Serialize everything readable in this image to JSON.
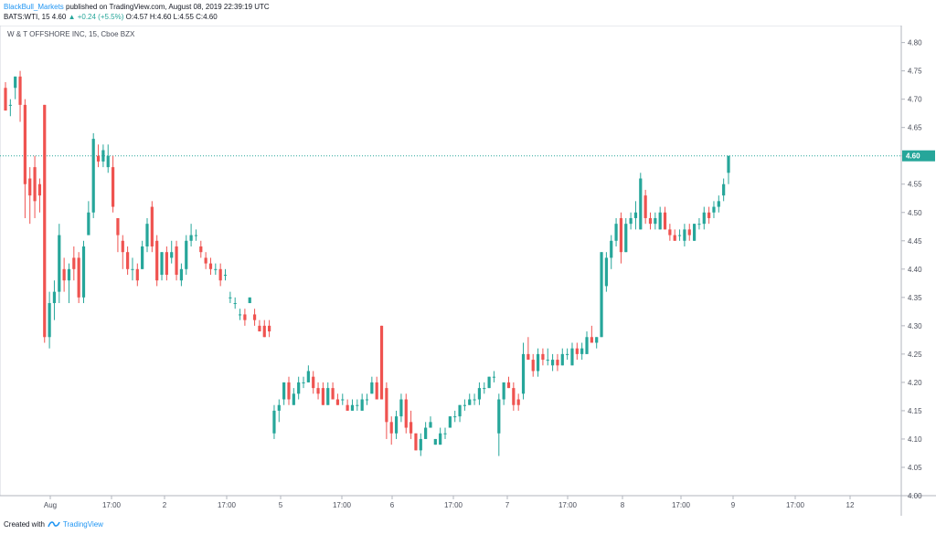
{
  "header": {
    "author": "BlackBull_Markets",
    "published_text": " published on TradingView.com, August 08, 2019 22:39:19 UTC",
    "symbol_line": "BATS:WTI, 15  4.60",
    "change": "▲ +0.24 (+5.5%)",
    "ohlc": "O:4.57  H:4.60  L:4.55  C:4.60"
  },
  "chart_data": {
    "type": "candlestick",
    "title": "W & T OFFSHORE INC, 15, Cboe BZX",
    "ylim": [
      4.0,
      4.83
    ],
    "y_ticks": [
      "4.80",
      "4.75",
      "4.70",
      "4.65",
      "4.60",
      "4.55",
      "4.50",
      "4.45",
      "4.40",
      "4.35",
      "4.30",
      "4.25",
      "4.20",
      "4.15",
      "4.10",
      "4.05",
      "4.00"
    ],
    "x_ticks": [
      "Aug",
      "17:00",
      "2",
      "17:00",
      "5",
      "17:00",
      "6",
      "17:00",
      "7",
      "17:00",
      "8",
      "17:00",
      "9",
      "17:00",
      "12"
    ],
    "last_price": "4.60",
    "colors": {
      "up": "#26a69a",
      "down": "#ef5350",
      "last_line": "#26a69a"
    },
    "candles": [
      [
        4.72,
        4.73,
        4.68,
        4.68
      ],
      [
        4.69,
        4.7,
        4.67,
        4.69
      ],
      [
        4.72,
        4.74,
        4.7,
        4.74
      ],
      [
        4.74,
        4.75,
        4.66,
        4.69
      ],
      [
        4.69,
        4.7,
        4.49,
        4.55
      ],
      [
        4.56,
        4.58,
        4.48,
        4.53
      ],
      [
        4.58,
        4.6,
        4.49,
        4.52
      ],
      [
        4.55,
        4.56,
        4.5,
        4.53
      ],
      [
        4.69,
        4.69,
        4.27,
        4.28
      ],
      [
        4.28,
        4.36,
        4.26,
        4.34
      ],
      [
        4.34,
        4.38,
        4.31,
        4.36
      ],
      [
        4.36,
        4.48,
        4.34,
        4.46
      ],
      [
        4.4,
        4.42,
        4.36,
        4.38
      ],
      [
        4.38,
        4.41,
        4.34,
        4.4
      ],
      [
        4.42,
        4.44,
        4.38,
        4.4
      ],
      [
        4.42,
        4.43,
        4.34,
        4.35
      ],
      [
        4.35,
        4.45,
        4.34,
        4.44
      ],
      [
        4.46,
        4.52,
        4.46,
        4.5
      ],
      [
        4.5,
        4.64,
        4.49,
        4.63
      ],
      [
        4.6,
        4.62,
        4.58,
        4.59
      ],
      [
        4.59,
        4.62,
        4.58,
        4.61
      ],
      [
        4.58,
        4.62,
        4.57,
        4.6
      ],
      [
        4.58,
        4.6,
        4.5,
        4.51
      ],
      [
        4.49,
        4.49,
        4.43,
        4.46
      ],
      [
        4.45,
        4.46,
        4.4,
        4.43
      ],
      [
        4.43,
        4.44,
        4.39,
        4.4
      ],
      [
        4.4,
        4.42,
        4.38,
        4.4
      ],
      [
        4.4,
        4.41,
        4.37,
        4.38
      ],
      [
        4.4,
        4.45,
        4.4,
        4.44
      ],
      [
        4.44,
        4.49,
        4.43,
        4.48
      ],
      [
        4.51,
        4.52,
        4.43,
        4.44
      ],
      [
        4.45,
        4.46,
        4.37,
        4.38
      ],
      [
        4.39,
        4.43,
        4.38,
        4.43
      ],
      [
        4.43,
        4.44,
        4.38,
        4.39
      ],
      [
        4.42,
        4.45,
        4.41,
        4.43
      ],
      [
        4.44,
        4.45,
        4.38,
        4.39
      ],
      [
        4.38,
        4.41,
        4.37,
        4.4
      ],
      [
        4.4,
        4.46,
        4.39,
        4.45
      ],
      [
        4.45,
        4.48,
        4.44,
        4.46
      ],
      [
        4.46,
        4.47,
        4.45,
        4.46
      ],
      [
        4.44,
        4.45,
        4.42,
        4.43
      ],
      [
        4.42,
        4.43,
        4.4,
        4.41
      ],
      [
        4.41,
        4.42,
        4.39,
        4.4
      ],
      [
        4.4,
        4.41,
        4.39,
        4.4
      ],
      [
        4.4,
        4.41,
        4.37,
        4.38
      ],
      [
        4.39,
        4.4,
        4.38,
        4.39
      ],
      [
        4.35,
        4.36,
        4.34,
        4.35
      ],
      [
        4.34,
        4.35,
        4.33,
        4.34
      ],
      [
        4.32,
        4.33,
        4.31,
        4.32
      ],
      [
        4.32,
        4.33,
        4.3,
        4.31
      ],
      [
        4.34,
        4.35,
        4.34,
        4.35
      ],
      [
        4.32,
        4.33,
        4.3,
        4.31
      ],
      [
        4.3,
        4.31,
        4.29,
        4.29
      ],
      [
        4.3,
        4.31,
        4.28,
        4.28
      ],
      [
        4.3,
        4.31,
        4.28,
        4.29
      ],
      [
        4.11,
        4.16,
        4.1,
        4.15
      ],
      [
        4.15,
        4.17,
        4.13,
        4.16
      ],
      [
        4.17,
        4.2,
        4.16,
        4.2
      ],
      [
        4.2,
        4.21,
        4.16,
        4.17
      ],
      [
        4.16,
        4.19,
        4.16,
        4.18
      ],
      [
        4.18,
        4.21,
        4.17,
        4.2
      ],
      [
        4.2,
        4.21,
        4.19,
        4.2
      ],
      [
        4.2,
        4.23,
        4.2,
        4.22
      ],
      [
        4.21,
        4.22,
        4.18,
        4.19
      ],
      [
        4.19,
        4.2,
        4.17,
        4.18
      ],
      [
        4.19,
        4.2,
        4.16,
        4.16
      ],
      [
        4.16,
        4.2,
        4.16,
        4.19
      ],
      [
        4.19,
        4.2,
        4.17,
        4.17
      ],
      [
        4.17,
        4.18,
        4.16,
        4.16
      ],
      [
        4.17,
        4.18,
        4.16,
        4.17
      ],
      [
        4.16,
        4.17,
        4.15,
        4.15
      ],
      [
        4.15,
        4.17,
        4.15,
        4.16
      ],
      [
        4.16,
        4.17,
        4.15,
        4.16
      ],
      [
        4.15,
        4.18,
        4.15,
        4.17
      ],
      [
        4.17,
        4.18,
        4.16,
        4.17
      ],
      [
        4.18,
        4.21,
        4.18,
        4.2
      ],
      [
        4.2,
        4.21,
        4.17,
        4.17
      ],
      [
        4.3,
        4.3,
        4.17,
        4.17
      ],
      [
        4.19,
        4.2,
        4.1,
        4.13
      ],
      [
        4.13,
        4.14,
        4.09,
        4.11
      ],
      [
        4.11,
        4.15,
        4.1,
        4.14
      ],
      [
        4.14,
        4.18,
        4.13,
        4.17
      ],
      [
        4.17,
        4.18,
        4.11,
        4.12
      ],
      [
        4.13,
        4.15,
        4.1,
        4.11
      ],
      [
        4.11,
        4.11,
        4.08,
        4.08
      ],
      [
        4.08,
        4.11,
        4.07,
        4.1
      ],
      [
        4.1,
        4.13,
        4.1,
        4.12
      ],
      [
        4.12,
        4.14,
        4.12,
        4.13
      ],
      [
        4.09,
        4.1,
        4.09,
        4.1
      ],
      [
        4.09,
        4.12,
        4.09,
        4.11
      ],
      [
        4.11,
        4.12,
        4.1,
        4.11
      ],
      [
        4.12,
        4.14,
        4.12,
        4.14
      ],
      [
        4.14,
        4.15,
        4.13,
        4.14
      ],
      [
        4.14,
        4.16,
        4.13,
        4.16
      ],
      [
        4.16,
        4.17,
        4.15,
        4.16
      ],
      [
        4.16,
        4.18,
        4.16,
        4.17
      ],
      [
        4.17,
        4.18,
        4.16,
        4.17
      ],
      [
        4.17,
        4.2,
        4.16,
        4.19
      ],
      [
        4.19,
        4.2,
        4.18,
        4.19
      ],
      [
        4.19,
        4.21,
        4.19,
        4.21
      ],
      [
        4.21,
        4.22,
        4.2,
        4.21
      ],
      [
        4.11,
        4.18,
        4.07,
        4.17
      ],
      [
        4.17,
        4.2,
        4.16,
        4.2
      ],
      [
        4.2,
        4.21,
        4.19,
        4.19
      ],
      [
        4.19,
        4.2,
        4.15,
        4.16
      ],
      [
        4.17,
        4.18,
        4.15,
        4.16
      ],
      [
        4.18,
        4.27,
        4.17,
        4.25
      ],
      [
        4.25,
        4.28,
        4.24,
        4.24
      ],
      [
        4.24,
        4.25,
        4.21,
        4.22
      ],
      [
        4.22,
        4.26,
        4.21,
        4.25
      ],
      [
        4.25,
        4.26,
        4.23,
        4.24
      ],
      [
        4.24,
        4.26,
        4.23,
        4.24
      ],
      [
        4.23,
        4.25,
        4.22,
        4.24
      ],
      [
        4.24,
        4.25,
        4.22,
        4.23
      ],
      [
        4.23,
        4.26,
        4.23,
        4.25
      ],
      [
        4.25,
        4.26,
        4.24,
        4.25
      ],
      [
        4.23,
        4.27,
        4.23,
        4.26
      ],
      [
        4.26,
        4.27,
        4.24,
        4.25
      ],
      [
        4.25,
        4.27,
        4.24,
        4.26
      ],
      [
        4.25,
        4.29,
        4.25,
        4.28
      ],
      [
        4.28,
        4.3,
        4.27,
        4.27
      ],
      [
        4.27,
        4.28,
        4.26,
        4.28
      ],
      [
        4.28,
        4.43,
        4.28,
        4.43
      ],
      [
        4.37,
        4.43,
        4.36,
        4.42
      ],
      [
        4.42,
        4.46,
        4.4,
        4.45
      ],
      [
        4.45,
        4.49,
        4.44,
        4.48
      ],
      [
        4.49,
        4.5,
        4.41,
        4.43
      ],
      [
        4.43,
        4.49,
        4.43,
        4.48
      ],
      [
        4.48,
        4.5,
        4.47,
        4.49
      ],
      [
        4.49,
        4.52,
        4.47,
        4.5
      ],
      [
        4.47,
        4.57,
        4.47,
        4.56
      ],
      [
        4.53,
        4.54,
        4.48,
        4.49
      ],
      [
        4.49,
        4.5,
        4.47,
        4.48
      ],
      [
        4.48,
        4.5,
        4.47,
        4.49
      ],
      [
        4.47,
        4.51,
        4.47,
        4.5
      ],
      [
        4.5,
        4.51,
        4.47,
        4.47
      ],
      [
        4.47,
        4.48,
        4.45,
        4.46
      ],
      [
        4.46,
        4.47,
        4.45,
        4.45
      ],
      [
        4.46,
        4.47,
        4.45,
        4.46
      ],
      [
        4.45,
        4.48,
        4.44,
        4.47
      ],
      [
        4.47,
        4.48,
        4.45,
        4.46
      ],
      [
        4.45,
        4.48,
        4.45,
        4.48
      ],
      [
        4.48,
        4.49,
        4.47,
        4.48
      ],
      [
        4.48,
        4.51,
        4.47,
        4.5
      ],
      [
        4.5,
        4.51,
        4.48,
        4.49
      ],
      [
        4.5,
        4.52,
        4.49,
        4.51
      ],
      [
        4.51,
        4.53,
        4.5,
        4.52
      ],
      [
        4.53,
        4.56,
        4.52,
        4.55
      ],
      [
        4.57,
        4.6,
        4.55,
        4.6
      ]
    ]
  },
  "footer": {
    "created_with": "Created with",
    "brand": "TradingView"
  }
}
